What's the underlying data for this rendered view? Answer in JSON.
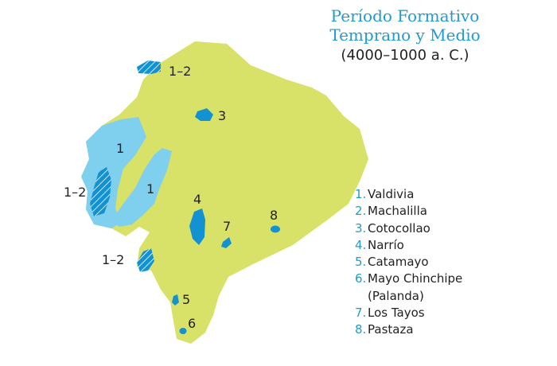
{
  "title": {
    "line1": "Período Formativo",
    "line2": "Temprano y Medio",
    "subtitle": "(4000–1000 a. C.)"
  },
  "colors": {
    "land": "#d8e268",
    "region_light": "#7fcfef",
    "site": "#1392d2",
    "accent_text": "#1e9bd1"
  },
  "map_labels": {
    "north": "1–2",
    "three": "3",
    "coast_upper": "1",
    "coast_inner": "1",
    "coast_mid": "1–2",
    "four": "4",
    "seven": "7",
    "eight": "8",
    "south_coast": "1–2",
    "five": "5",
    "six": "6"
  },
  "legend": [
    {
      "num": "1.",
      "label": "Valdivia"
    },
    {
      "num": "2.",
      "label": "Machalilla"
    },
    {
      "num": "3.",
      "label": "Cotocollao"
    },
    {
      "num": "4.",
      "label": "Narrío"
    },
    {
      "num": "5.",
      "label": "Catamayo"
    },
    {
      "num": "6.",
      "label": "Mayo Chinchipe"
    },
    {
      "num": "",
      "label": "(Palanda)"
    },
    {
      "num": "7.",
      "label": "Los Tayos"
    },
    {
      "num": "8.",
      "label": "Pastaza"
    }
  ]
}
